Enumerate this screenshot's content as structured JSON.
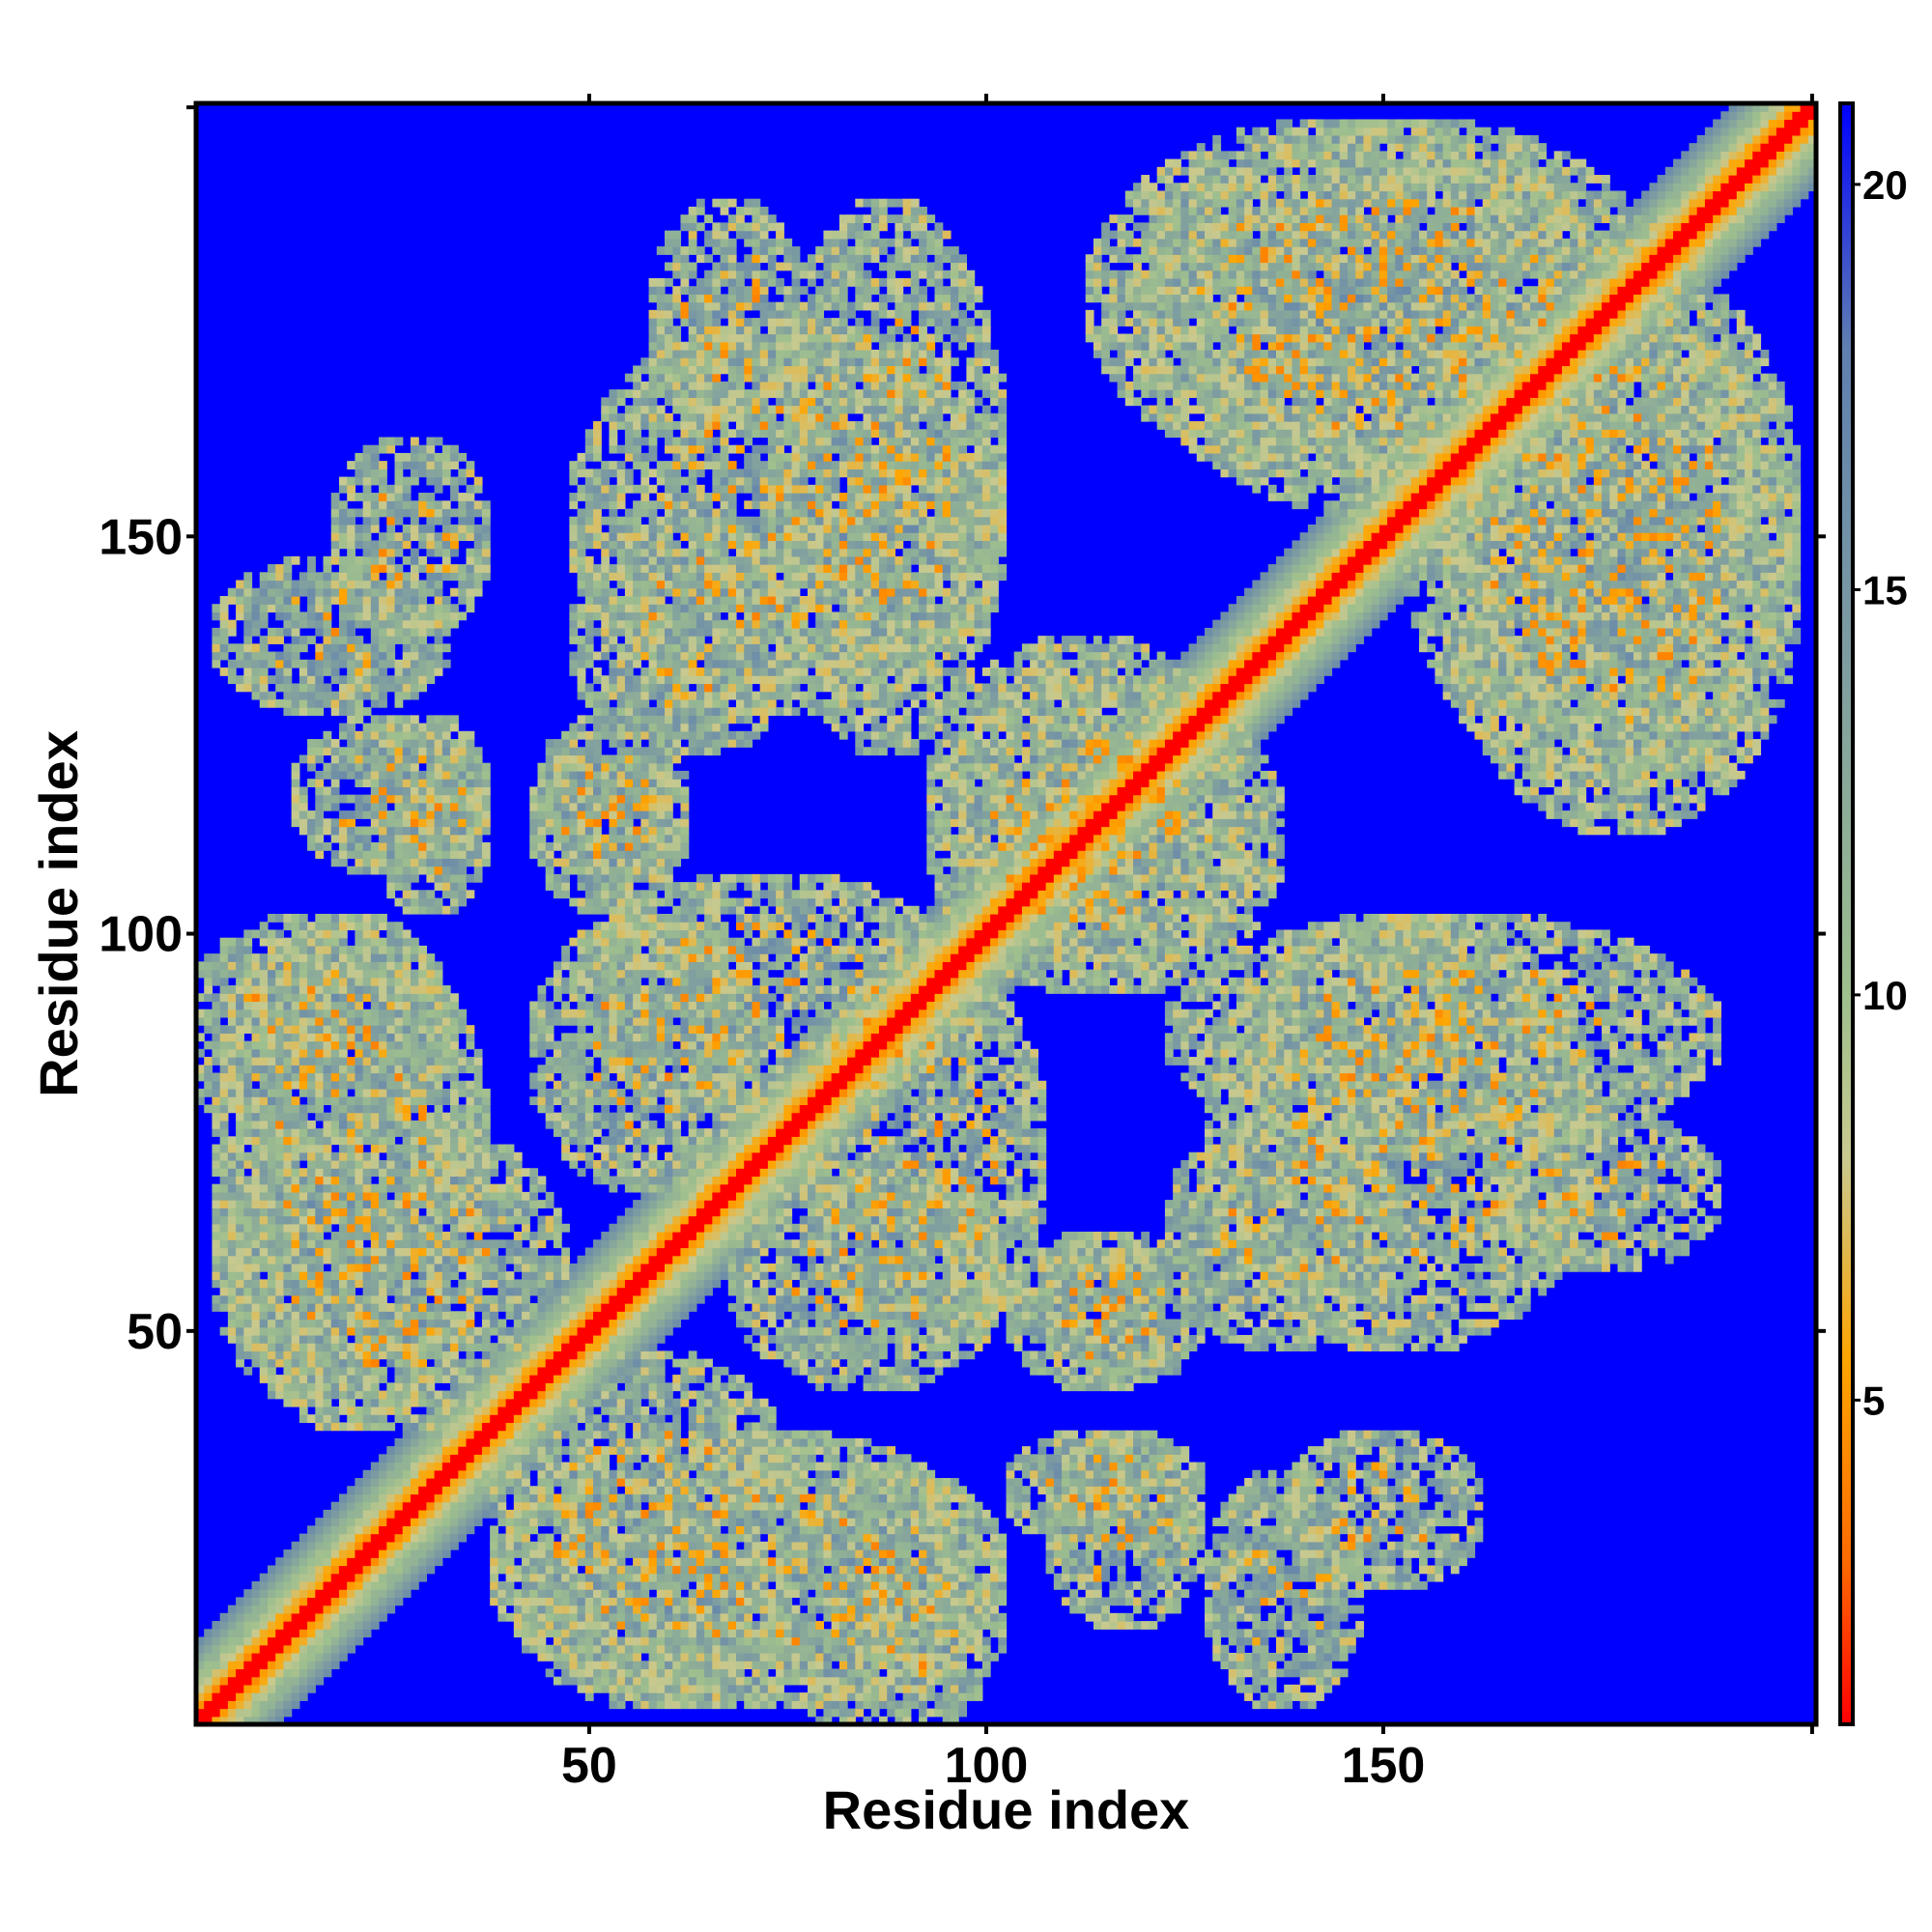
{
  "chart_data": {
    "type": "heatmap",
    "title": "",
    "xlabel": "Residue index",
    "ylabel": "Residue index",
    "x_range": [
      1,
      204
    ],
    "y_range": [
      1,
      204
    ],
    "xticks": [
      50,
      100,
      150
    ],
    "yticks": [
      50,
      100,
      150
    ],
    "colorbar": {
      "range": [
        1,
        21
      ],
      "ticks": [
        5,
        10,
        15,
        20
      ],
      "colors": [
        "#ff0000",
        "#ff6a00",
        "#ffa500",
        "#c8c98f",
        "#9ebf8e",
        "#7f9ea0",
        "#5f7fb0",
        "#0000ff"
      ],
      "color_stops": [
        1,
        3,
        5.5,
        8,
        10,
        14,
        18,
        21
      ]
    },
    "background_color": "#0000ff",
    "description": "Symmetric residue-residue distance map: red/orange diagonal band of near contacts, pale green/grey off-diagonal regions of intermediate distances, blue elsewhere (far).",
    "contact_regions": [
      {
        "x": [
          1,
          204
        ],
        "y": [
          1,
          204
        ],
        "kind": "diagonal",
        "width": 6
      },
      {
        "x": [
          5,
          45
        ],
        "y": [
          40,
          75
        ],
        "kind": "antiparallel"
      },
      {
        "x": [
          1,
          30
        ],
        "y": [
          75,
          100
        ],
        "kind": "antiparallel"
      },
      {
        "x": [
          40,
          100
        ],
        "y": [
          5,
          35
        ],
        "kind": "antiparallel"
      },
      {
        "x": [
          70,
          100
        ],
        "y": [
          45,
          70
        ],
        "kind": "patch"
      },
      {
        "x": [
          105,
          125
        ],
        "y": [
          45,
          60
        ],
        "kind": "patch"
      },
      {
        "x": [
          125,
          150
        ],
        "y": [
          50,
          75
        ],
        "kind": "antiparallel"
      },
      {
        "x": [
          125,
          190
        ],
        "y": [
          75,
          100
        ],
        "kind": "antiparallel"
      },
      {
        "x": [
          50,
          95
        ],
        "y": [
          80,
          105
        ],
        "kind": "antiparallel"
      },
      {
        "x": [
          45,
          60
        ],
        "y": [
          110,
          120
        ],
        "kind": "patch"
      },
      {
        "x": [
          15,
          35
        ],
        "y": [
          110,
          125
        ],
        "kind": "patch"
      },
      {
        "x": [
          5,
          30
        ],
        "y": [
          130,
          145
        ],
        "kind": "patch"
      },
      {
        "x": [
          50,
          100
        ],
        "y": [
          130,
          175
        ],
        "kind": "antiparallel"
      },
      {
        "x": [
          95,
          135
        ],
        "y": [
          95,
          130
        ],
        "kind": "cross"
      },
      {
        "x": [
          120,
          185
        ],
        "y": [
          155,
          200
        ],
        "kind": "antiparallel"
      },
      {
        "x": [
          160,
          200
        ],
        "y": [
          115,
          175
        ],
        "kind": "antiparallel"
      },
      {
        "x": [
          165,
          190
        ],
        "y": [
          60,
          75
        ],
        "kind": "patch"
      },
      {
        "x": [
          140,
          160
        ],
        "y": [
          20,
          35
        ],
        "kind": "patch"
      },
      {
        "x": [
          105,
          125
        ],
        "y": [
          25,
          35
        ],
        "kind": "patch"
      }
    ]
  }
}
